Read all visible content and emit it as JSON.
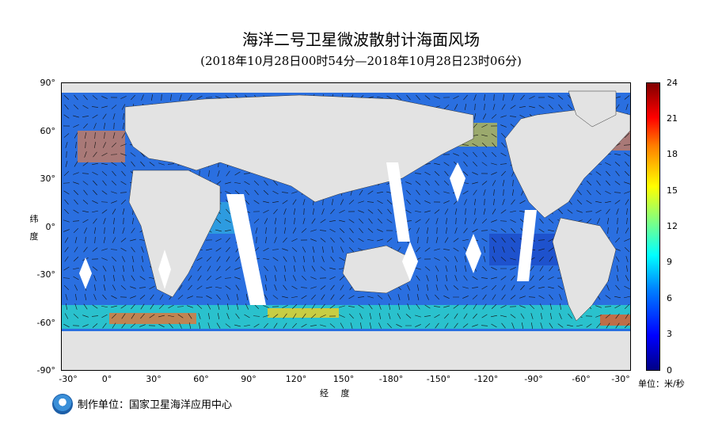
{
  "title": "海洋二号卫星微波散射计海面风场",
  "subtitle": "(2018年10月28日00时54分—2018年10月28日23时06分)",
  "y_axis": {
    "label_chars": [
      "纬",
      "度"
    ],
    "ticks": [
      "90°",
      "60°",
      "30°",
      "0°",
      "-30°",
      "-60°",
      "-90°"
    ]
  },
  "x_axis": {
    "label": "经 度",
    "ticks": [
      "-30°",
      "0°",
      "30°",
      "60°",
      "90°",
      "120°",
      "150°",
      "-180°",
      "-150°",
      "-120°",
      "-90°",
      "-60°",
      "-30°"
    ]
  },
  "colorbar": {
    "ticks": [
      "24",
      "21",
      "18",
      "15",
      "12",
      "9",
      "6",
      "3",
      "0"
    ],
    "unit": "单位：米/秒",
    "min": 0,
    "max": 24,
    "colors": [
      "#000085",
      "#0000ff",
      "#0080ff",
      "#00ffff",
      "#80ff80",
      "#ffff00",
      "#ff8000",
      "#ff0000",
      "#800000"
    ]
  },
  "footer": "制作单位：国家卫星海洋应用中心",
  "map": {
    "land_color": "#e3e3e3",
    "ocean_color": "#1a66e6",
    "lon_range": [
      -40,
      320
    ],
    "lat_range": [
      -90,
      90
    ]
  }
}
